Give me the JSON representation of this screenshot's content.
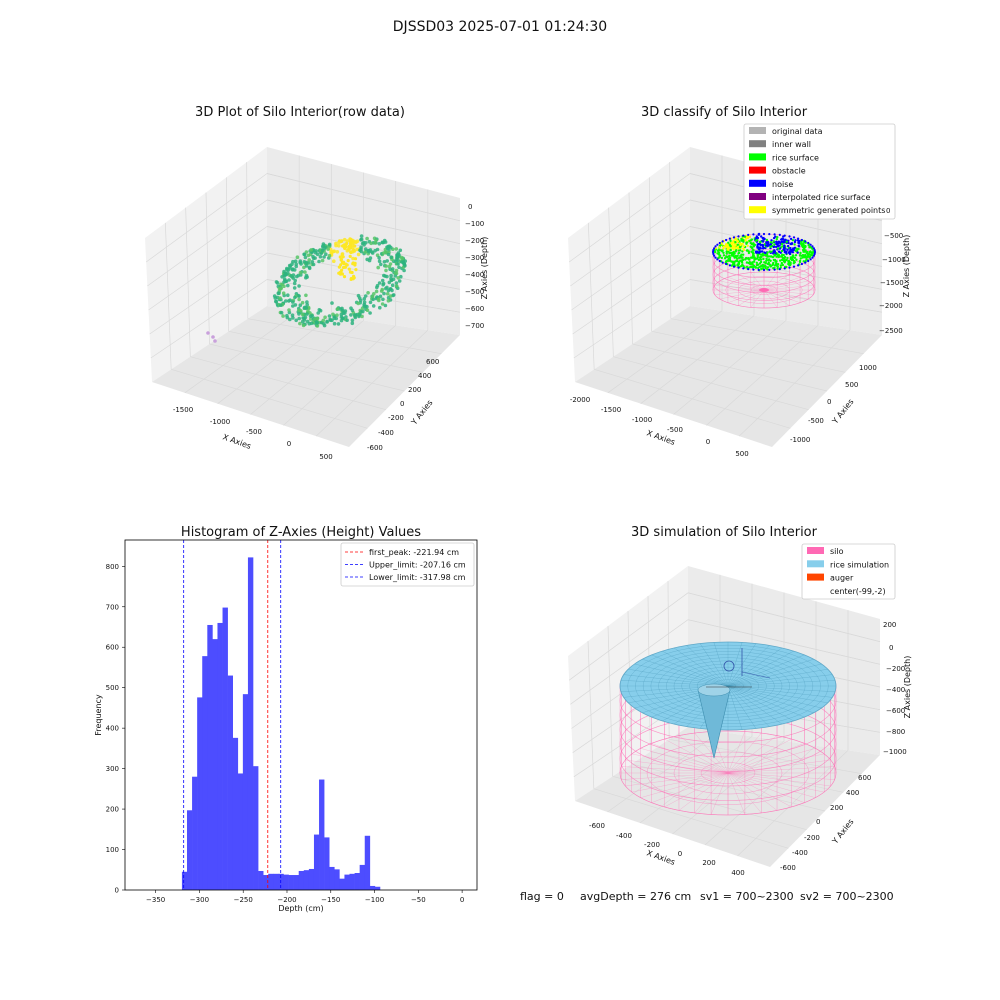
{
  "figure": {
    "suptitle": "DJSSD03 2025-07-01 01:24:30",
    "status_line": {
      "flag": "flag = 0",
      "avg": "avgDepth = 276 cm",
      "sv1": "sv1 = 700~2300",
      "sv2": "sv2 = 700~2300"
    }
  },
  "colors": {
    "original": "#b3b3b3",
    "inner_wall": "#808080",
    "rice": "#00ff00",
    "obstacle": "#ff0000",
    "noise": "#0000ff",
    "interp": "#800080",
    "sym": "#ffff00",
    "silo": "#ff69b4",
    "rice_sim": "#87ceeb",
    "auger": "#ff4500",
    "hist": "#4d4dff",
    "viridis_low": "#2db37f",
    "viridis_high": "#fde725",
    "pane": "#f2f2f2"
  },
  "chart_data": [
    {
      "id": "raw",
      "type": "scatter",
      "title": "3D Plot of Silo Interior(row data)",
      "xlabel": "X Axies",
      "ylabel": "Y Axies",
      "zlabel": "Z Axies (Depth)",
      "x_ticks": [
        "-1500",
        "-1000",
        "-500",
        "0",
        "500"
      ],
      "y_ticks": [
        "-600",
        "-400",
        "-200",
        "0",
        "200",
        "400",
        "600"
      ],
      "z_ticks": [
        "0",
        "−100",
        "−200",
        "−300",
        "−400",
        "−500",
        "−600",
        "−700"
      ]
    },
    {
      "id": "classify",
      "type": "scatter",
      "title": "3D classify of Silo Interior",
      "xlabel": "X Axies",
      "ylabel": "Y Axies",
      "zlabel": "Z Axies (Depth)",
      "x_ticks": [
        "-2000",
        "-1500",
        "-1000",
        "-500",
        "0",
        "500"
      ],
      "y_ticks": [
        "-1000",
        "-500",
        "0",
        "500",
        "1000"
      ],
      "z_ticks": [
        "0",
        "−500",
        "−1000",
        "−1500",
        "−2000",
        "−2500"
      ],
      "legend": [
        {
          "label": "original data",
          "color_key": "original"
        },
        {
          "label": "inner wall",
          "color_key": "inner_wall"
        },
        {
          "label": "rice surface",
          "color_key": "rice"
        },
        {
          "label": "obstacle",
          "color_key": "obstacle"
        },
        {
          "label": "noise",
          "color_key": "noise"
        },
        {
          "label": "interpolated rice surface",
          "color_key": "interp"
        },
        {
          "label": "symmetric generated points",
          "color_key": "sym"
        }
      ]
    },
    {
      "id": "hist",
      "type": "bar",
      "title": "Histogram of Z-Axies (Height) Values",
      "xlabel": "Depth (cm)",
      "ylabel": "Frequency",
      "xlim": [
        -385,
        17
      ],
      "ylim": [
        0,
        865
      ],
      "x_ticks": [
        -350,
        -300,
        -250,
        -200,
        -150,
        -100,
        -50,
        0
      ],
      "x_tick_labels": [
        "−350",
        "−300",
        "−250",
        "−200",
        "−150",
        "−100",
        "−50",
        "0"
      ],
      "y_ticks": [
        0,
        100,
        200,
        300,
        400,
        500,
        600,
        700,
        800
      ],
      "bin_start": -320,
      "bin_width": 5.8,
      "counts": [
        45,
        197,
        280,
        476,
        578,
        655,
        620,
        660,
        698,
        530,
        376,
        288,
        484,
        822,
        306,
        47,
        37,
        40,
        40,
        40,
        38,
        37,
        37,
        47,
        49,
        52,
        137,
        273,
        130,
        57,
        51,
        28,
        38,
        40,
        42,
        62,
        134,
        10,
        8
      ],
      "vlines": [
        {
          "label": "first_peak: -221.94 cm",
          "x": -221.94,
          "color": "#ff0000"
        },
        {
          "label": "Upper_limit: -207.16 cm",
          "x": -207.16,
          "color": "#0000ff"
        },
        {
          "label": "Lower_limit: -317.98 cm",
          "x": -317.98,
          "color": "#0000ff"
        }
      ]
    },
    {
      "id": "sim",
      "type": "scatter",
      "title": "3D simulation of Silo Interior",
      "xlabel": "X Axies",
      "ylabel": "Y Axies",
      "zlabel": "Z Axies (Depth)",
      "x_ticks": [
        "-600",
        "-400",
        "-200",
        "0",
        "200",
        "400"
      ],
      "y_ticks": [
        "-600",
        "-400",
        "-200",
        "0",
        "200",
        "400",
        "600"
      ],
      "z_ticks": [
        "200",
        "0",
        "−200",
        "−400",
        "−600",
        "−800",
        "−1000"
      ],
      "legend": [
        {
          "label": "silo",
          "color_key": "silo"
        },
        {
          "label": "rice simulation",
          "color_key": "rice_sim"
        },
        {
          "label": "auger",
          "color_key": "auger"
        },
        {
          "label": "center(-99,-2)",
          "color_key": ""
        }
      ]
    }
  ]
}
